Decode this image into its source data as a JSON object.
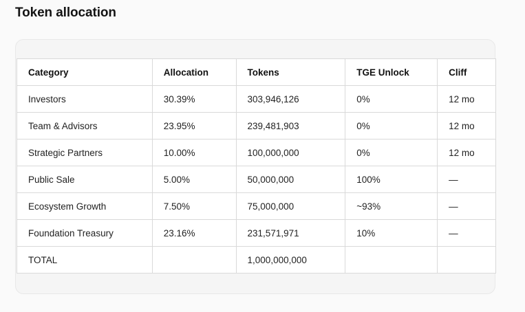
{
  "heading": "Token allocation",
  "table": {
    "columns": [
      "Category",
      "Allocation",
      "Tokens",
      "TGE Unlock",
      "Cliff"
    ],
    "rows": [
      [
        "Investors",
        "30.39%",
        "303,946,126",
        "0%",
        "12 mo"
      ],
      [
        "Team & Advisors",
        "23.95%",
        "239,481,903",
        "0%",
        "12 mo"
      ],
      [
        "Strategic Partners",
        "10.00%",
        "100,000,000",
        "0%",
        "12 mo"
      ],
      [
        "Public Sale",
        "5.00%",
        "50,000,000",
        "100%",
        "—"
      ],
      [
        "Ecosystem Growth",
        "7.50%",
        "75,000,000",
        "~93%",
        "—"
      ],
      [
        "Foundation Treasury",
        "23.16%",
        "231,571,971",
        "10%",
        "—"
      ],
      [
        "TOTAL",
        "",
        "1,000,000,000",
        "",
        ""
      ]
    ]
  }
}
